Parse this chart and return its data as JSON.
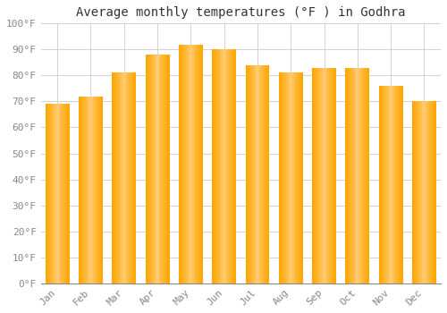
{
  "title": "Average monthly temperatures (°F ) in Godhra",
  "months": [
    "Jan",
    "Feb",
    "Mar",
    "Apr",
    "May",
    "Jun",
    "Jul",
    "Aug",
    "Sep",
    "Oct",
    "Nov",
    "Dec"
  ],
  "values": [
    69,
    72,
    81,
    88,
    92,
    90,
    84,
    81,
    83,
    83,
    76,
    70
  ],
  "bar_color_main": "#FFA500",
  "bar_color_light": "#FFD080",
  "bar_edge_color": "#CC8800",
  "ylim": [
    0,
    100
  ],
  "ytick_step": 10,
  "background_color": "#FFFFFF",
  "grid_color": "#CCCCCC",
  "title_fontsize": 10,
  "tick_fontsize": 8,
  "tick_color": "#888888",
  "font_family": "monospace",
  "figsize": [
    5.0,
    3.5
  ],
  "dpi": 100
}
